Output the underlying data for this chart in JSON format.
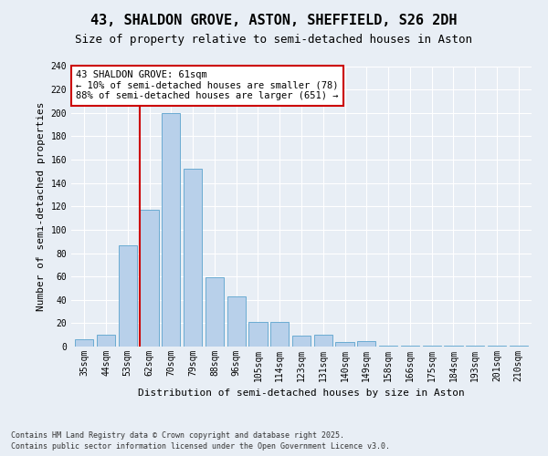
{
  "title": "43, SHALDON GROVE, ASTON, SHEFFIELD, S26 2DH",
  "subtitle": "Size of property relative to semi-detached houses in Aston",
  "xlabel": "Distribution of semi-detached houses by size in Aston",
  "ylabel": "Number of semi-detached properties",
  "footnote1": "Contains HM Land Registry data © Crown copyright and database right 2025.",
  "footnote2": "Contains public sector information licensed under the Open Government Licence v3.0.",
  "bar_labels": [
    "35sqm",
    "44sqm",
    "53sqm",
    "62sqm",
    "70sqm",
    "79sqm",
    "88sqm",
    "96sqm",
    "105sqm",
    "114sqm",
    "123sqm",
    "131sqm",
    "140sqm",
    "149sqm",
    "158sqm",
    "166sqm",
    "175sqm",
    "184sqm",
    "193sqm",
    "201sqm",
    "210sqm"
  ],
  "bar_values": [
    6,
    10,
    87,
    117,
    200,
    152,
    59,
    43,
    21,
    21,
    9,
    10,
    4,
    5,
    1,
    1,
    1,
    1,
    1,
    1,
    1
  ],
  "bar_color": "#b8d0ea",
  "bar_edge_color": "#6aabd2",
  "vline_x": 2.575,
  "vline_color": "#cc0000",
  "annotation_title": "43 SHALDON GROVE: 61sqm",
  "annotation_line1": "← 10% of semi-detached houses are smaller (78)",
  "annotation_line2": "88% of semi-detached houses are larger (651) →",
  "annotation_box_facecolor": "#ffffff",
  "annotation_box_edgecolor": "#cc0000",
  "ylim": [
    0,
    240
  ],
  "yticks": [
    0,
    20,
    40,
    60,
    80,
    100,
    120,
    140,
    160,
    180,
    200,
    220,
    240
  ],
  "background_color": "#e8eef5",
  "grid_color": "#ffffff",
  "title_fontsize": 11,
  "subtitle_fontsize": 9,
  "tick_fontsize": 7,
  "ylabel_fontsize": 8,
  "xlabel_fontsize": 8,
  "annotation_fontsize": 7.5,
  "footnote_fontsize": 6
}
